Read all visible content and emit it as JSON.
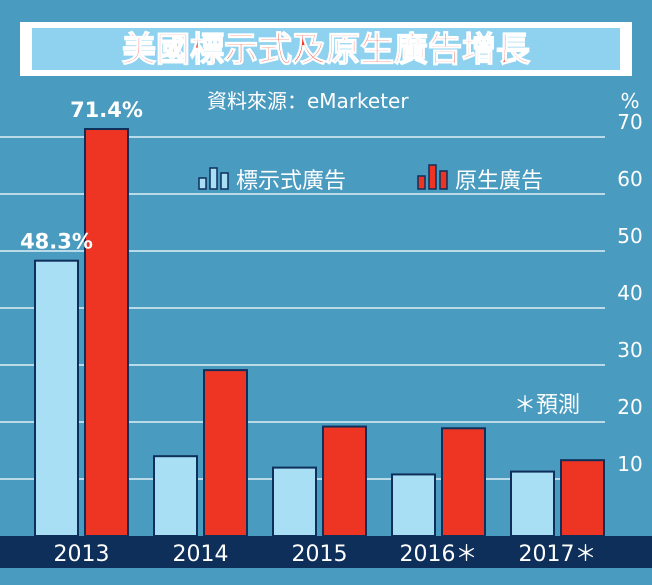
{
  "chart_data": {
    "type": "bar",
    "title": "美國標示式及原生廣告增長",
    "source": "資料來源：eMarketer",
    "unit": "%",
    "note": "＊預測",
    "categories": [
      "2013",
      "2014",
      "2015",
      "2016＊",
      "2017＊"
    ],
    "series": [
      {
        "name": "標示式廣告",
        "values": [
          48.3,
          14.0,
          12.0,
          10.8,
          11.3
        ],
        "color": "#a8dff5"
      },
      {
        "name": "原生廣告",
        "values": [
          71.4,
          29.1,
          19.2,
          18.9,
          13.3
        ],
        "color": "#ee3524"
      }
    ],
    "data_labels": [
      "48.3%",
      "71.4%"
    ],
    "yticks": [
      "10",
      "20",
      "30",
      "40",
      "50",
      "60",
      "70"
    ],
    "ylim": [
      0,
      80
    ],
    "grid": true,
    "legend": "top-center"
  }
}
